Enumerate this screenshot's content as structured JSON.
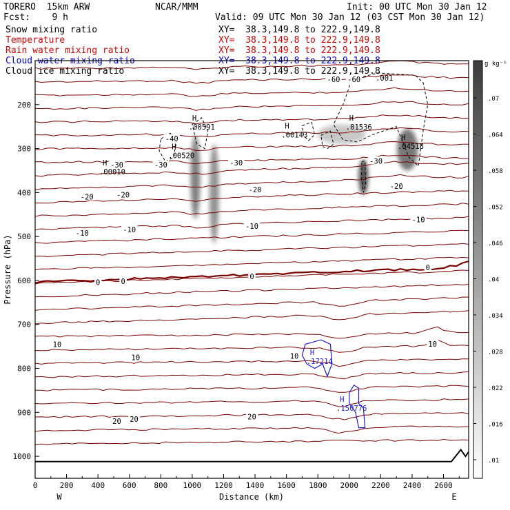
{
  "header": {
    "model": "TORERO  15km ARW",
    "org": "NCAR/MMM",
    "init": "Init: 00 UTC Mon 30 Jan 12",
    "fcst": "Fcst:    9 h",
    "valid": "Valid: 09 UTC Mon 30 Jan 12 (03 CST Mon 30 Jan 12)"
  },
  "fields": [
    {
      "name": "Snow mixing ratio",
      "xy": "XY=  38.3,149.8 to 222.9,149.8",
      "color": "#000000"
    },
    {
      "name": "Temperature",
      "xy": "XY=  38.3,149.8 to 222.9,149.8",
      "color": "#cc0000"
    },
    {
      "name": "Rain water mixing ratio",
      "xy": "XY=  38.3,149.8 to 222.9,149.8",
      "color": "#cc0000"
    },
    {
      "name": "Cloud water mixing ratio",
      "xy": "XY=  38.3,149.8 to 222.9,149.8",
      "color": "#0000cc"
    },
    {
      "name": "Cloud ice mixing ratio",
      "xy": "XY=  38.3,149.8 to 222.9,149.8",
      "color": "#000000"
    }
  ],
  "colors": {
    "temperature": "#7a0000",
    "cloud_water": "#1a1acc",
    "cloud_ice": "#000000",
    "terrain": "#000000"
  },
  "chart_data": {
    "type": "contour",
    "xlabel": "Distance (km)",
    "ylabel": "Pressure (hPa)",
    "xlim": [
      0,
      2760
    ],
    "ylim": [
      1050,
      100
    ],
    "x_ticks": [
      0,
      200,
      400,
      600,
      800,
      1000,
      1200,
      1400,
      1600,
      1800,
      2000,
      2200,
      2400,
      2600
    ],
    "y_ticks": [
      200,
      300,
      400,
      500,
      600,
      700,
      800,
      900,
      1000
    ],
    "west_label": "W",
    "east_label": "E",
    "colorbar": {
      "unit": "g kg⁻¹",
      "levels": [
        ".01",
        ".016",
        ".022",
        ".028",
        ".034",
        ".04",
        ".046",
        ".052",
        ".058",
        ".064",
        ".07"
      ]
    },
    "temperature_labels": [
      {
        "text": "-60",
        "x": 1900,
        "p": 142
      },
      {
        "text": "-60",
        "x": 2030,
        "p": 142
      },
      {
        "text": "-40",
        "x": 870,
        "p": 277
      },
      {
        "text": "-30",
        "x": 520,
        "p": 337
      },
      {
        "text": "-30",
        "x": 800,
        "p": 337
      },
      {
        "text": "-30",
        "x": 1280,
        "p": 332
      },
      {
        "text": "-30",
        "x": 2170,
        "p": 328
      },
      {
        "text": "-20",
        "x": 330,
        "p": 410
      },
      {
        "text": "-20",
        "x": 560,
        "p": 405
      },
      {
        "text": "-20",
        "x": 1400,
        "p": 393
      },
      {
        "text": "-20",
        "x": 2300,
        "p": 385
      },
      {
        "text": "-10",
        "x": 300,
        "p": 492
      },
      {
        "text": "-10",
        "x": 600,
        "p": 484
      },
      {
        "text": "-10",
        "x": 1380,
        "p": 476
      },
      {
        "text": "-10",
        "x": 2440,
        "p": 461
      },
      {
        "text": "0",
        "x": 400,
        "p": 604
      },
      {
        "text": "0",
        "x": 560,
        "p": 602
      },
      {
        "text": "0",
        "x": 1380,
        "p": 591
      },
      {
        "text": "0",
        "x": 2500,
        "p": 570
      },
      {
        "text": "10",
        "x": 140,
        "p": 745
      },
      {
        "text": "10",
        "x": 640,
        "p": 775
      },
      {
        "text": "10",
        "x": 1650,
        "p": 772
      },
      {
        "text": "10",
        "x": 2530,
        "p": 744
      },
      {
        "text": "20",
        "x": 520,
        "p": 920
      },
      {
        "text": "20",
        "x": 630,
        "p": 915
      },
      {
        "text": "20",
        "x": 1380,
        "p": 910
      }
    ],
    "maxima": [
      {
        "value": ".00010",
        "x": 430,
        "p": 346
      },
      {
        "value": ".00520",
        "x": 870,
        "p": 309
      },
      {
        "value": ".00591",
        "x": 1000,
        "p": 244
      },
      {
        "value": ".00143",
        "x": 1590,
        "p": 262
      },
      {
        "value": ".01536",
        "x": 2000,
        "p": 244
      },
      {
        "value": ".04518",
        "x": 2330,
        "p": 288
      },
      {
        "value": ".001",
        "x": 2190,
        "p": 133
      },
      {
        "value": ".17214",
        "x": 1750,
        "p": 777
      },
      {
        "value": ".150776",
        "x": 1940,
        "p": 884
      }
    ],
    "snow_columns": [
      {
        "x": 1020,
        "p_top": 270,
        "p_bottom": 460,
        "strength": 0.7
      },
      {
        "x": 1140,
        "p_top": 290,
        "p_bottom": 515,
        "strength": 0.6
      },
      {
        "x": 2090,
        "p_top": 325,
        "p_bottom": 405,
        "strength": 0.95
      },
      {
        "x": 2370,
        "p_top": 255,
        "p_bottom": 350,
        "strength": 0.75
      },
      {
        "x": 1950,
        "p_top": 245,
        "p_bottom": 290,
        "strength": 0.3
      }
    ]
  }
}
